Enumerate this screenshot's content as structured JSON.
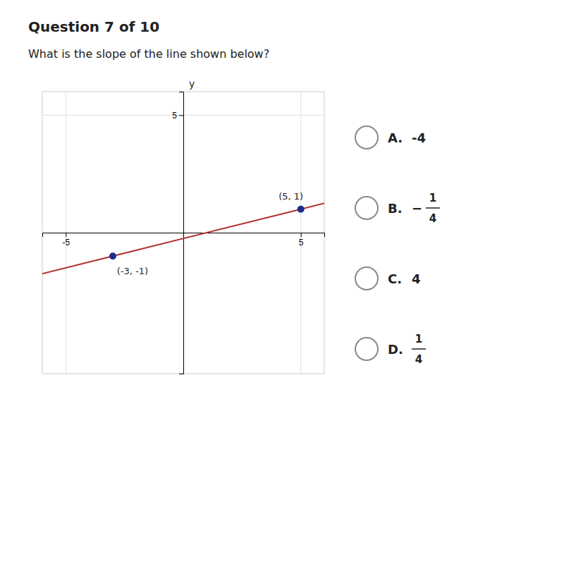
{
  "chart_data": {
    "type": "line",
    "title": "Question 7 of 10",
    "subtitle": "What is the slope of the line shown below?",
    "ylabel": "y",
    "x": [
      -3,
      5
    ],
    "values": [
      -1,
      1
    ],
    "value_labels": [
      "(-3, -1)",
      "(5, 1)"
    ],
    "data_labels": true,
    "color": "#b03030",
    "colors": [
      "#1a2e8a",
      "#1a2e8a"
    ],
    "marker": "circle",
    "xlim": [
      -6,
      6
    ],
    "ylim": [
      -6,
      6
    ],
    "xticks": [
      -5,
      5
    ],
    "yticks": [
      5
    ],
    "grid": true,
    "annotations": [
      {
        "label": "A.",
        "text": "-4"
      },
      {
        "label": "B.",
        "sign": "−",
        "numerator": "1",
        "denominator": "4"
      },
      {
        "label": "C.",
        "text": "4"
      },
      {
        "label": "D.",
        "numerator": "1",
        "denominator": "4"
      }
    ]
  }
}
